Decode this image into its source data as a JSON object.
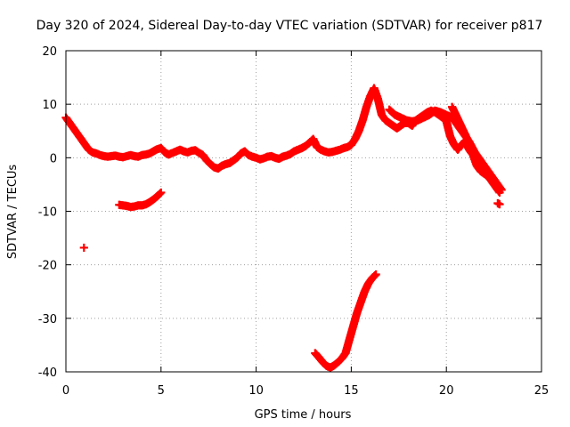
{
  "chart_data": {
    "type": "scatter",
    "title": "Day 320 of 2024, Sidereal Day-to-day VTEC variation (SDTVAR) for receiver p817",
    "xlabel": "GPS time / hours",
    "ylabel": "SDTVAR / TECUs",
    "xlim": [
      0,
      25
    ],
    "ylim": [
      -40,
      20
    ],
    "xticks": [
      0,
      5,
      10,
      15,
      20,
      25
    ],
    "yticks": [
      -40,
      -30,
      -20,
      -10,
      0,
      10,
      20
    ],
    "xtick_labels": [
      "0",
      "5",
      "10",
      "15",
      "20",
      "25"
    ],
    "ytick_labels": [
      "-40",
      "-30",
      "-20",
      "-10",
      "0",
      "10",
      "20"
    ],
    "grid": true,
    "marker": "plus",
    "color": "#ff0000",
    "series": [
      {
        "name": "main",
        "x": [
          0.0,
          0.2,
          0.4,
          0.6,
          0.8,
          1.0,
          1.2,
          1.4,
          1.6,
          1.8,
          2.0,
          2.2,
          2.4,
          2.6,
          2.8,
          3.0,
          3.2,
          3.4,
          3.6,
          3.8,
          4.0,
          4.2,
          4.4,
          4.6,
          4.8,
          5.0,
          5.2,
          5.4,
          5.6,
          5.8,
          6.0,
          6.2,
          6.4,
          6.6,
          6.8,
          7.0,
          7.2,
          7.4,
          7.6,
          7.8,
          8.0,
          8.2,
          8.4,
          8.6,
          8.8,
          9.0,
          9.2,
          9.4,
          9.6,
          9.8,
          10.0,
          10.2,
          10.4,
          10.6,
          10.8,
          11.0,
          11.2,
          11.4,
          11.6,
          11.8,
          12.0,
          12.2,
          12.4,
          12.6,
          12.8,
          13.0,
          13.2,
          13.4,
          13.6,
          13.8,
          14.0,
          14.2,
          14.4,
          14.6,
          14.8,
          15.0,
          15.2,
          15.4,
          15.6,
          15.8,
          16.0,
          16.2,
          16.4,
          16.6,
          16.8,
          17.0,
          17.2,
          17.4,
          17.6,
          17.8,
          18.0,
          18.2,
          18.4,
          18.6,
          18.8,
          19.0,
          19.2,
          19.4,
          19.6,
          19.8,
          20.0,
          20.2,
          20.4,
          20.6,
          20.8,
          21.0,
          21.2,
          21.4,
          21.6,
          21.8,
          22.0,
          22.2,
          22.4,
          22.6,
          22.8
        ],
        "y": [
          7.5,
          6.5,
          5.5,
          4.5,
          3.5,
          2.5,
          1.5,
          1.0,
          0.8,
          0.5,
          0.3,
          0.2,
          0.3,
          0.4,
          0.2,
          0.1,
          0.3,
          0.5,
          0.3,
          0.2,
          0.5,
          0.6,
          0.8,
          1.2,
          1.6,
          1.8,
          1.0,
          0.6,
          0.9,
          1.2,
          1.5,
          1.2,
          1.0,
          1.3,
          1.4,
          0.9,
          0.5,
          -0.5,
          -1.2,
          -1.8,
          -2.0,
          -1.5,
          -1.2,
          -1.0,
          -0.5,
          0.0,
          0.8,
          1.2,
          0.5,
          0.2,
          0.0,
          -0.3,
          -0.1,
          0.2,
          0.3,
          0.0,
          -0.2,
          0.2,
          0.4,
          0.7,
          1.2,
          1.5,
          1.8,
          2.2,
          2.8,
          3.5,
          2.0,
          1.5,
          1.2,
          1.0,
          1.1,
          1.3,
          1.5,
          1.8,
          2.0,
          2.4,
          3.5,
          5.0,
          7.0,
          9.5,
          11.5,
          13.0,
          11.0,
          8.0,
          7.0,
          6.5,
          6.0,
          5.5,
          6.0,
          6.5,
          6.5,
          6.0,
          7.0,
          7.5,
          8.0,
          8.5,
          8.8,
          8.5,
          8.0,
          7.5,
          6.8,
          4.0,
          2.5,
          1.5,
          2.5,
          3.0,
          1.5,
          0.5,
          -1.5,
          -2.5,
          -3.0,
          -3.5,
          -4.5,
          -5.5,
          -6.5
        ]
      },
      {
        "name": "branch-1",
        "x": [
          17.0,
          17.3,
          17.6,
          17.9,
          18.2,
          18.5,
          18.8,
          19.1,
          19.4,
          19.7,
          20.0,
          20.3,
          20.6,
          20.9,
          21.2,
          21.5,
          21.8,
          22.1,
          22.4,
          22.7,
          22.9
        ],
        "y": [
          9.0,
          8.0,
          7.5,
          7.0,
          6.8,
          7.0,
          7.5,
          8.0,
          8.8,
          8.5,
          8.0,
          7.5,
          6.0,
          4.5,
          3.0,
          1.0,
          -0.5,
          -2.0,
          -3.5,
          -5.0,
          -6.0
        ]
      },
      {
        "name": "branch-2",
        "x": [
          20.3,
          20.5,
          20.7,
          20.9,
          21.1,
          21.3,
          21.5,
          21.7,
          21.9,
          22.1,
          22.3,
          22.5,
          22.7
        ],
        "y": [
          9.5,
          8.0,
          6.5,
          5.0,
          3.5,
          2.0,
          0.5,
          -0.5,
          -1.5,
          -2.5,
          -3.5,
          -4.5,
          -5.5
        ]
      },
      {
        "name": "mid-low",
        "x": [
          2.8,
          3.0,
          3.2,
          3.4,
          3.6,
          3.8,
          4.0,
          4.2,
          4.4,
          4.6,
          4.8,
          5.0
        ],
        "y": [
          -8.8,
          -8.9,
          -9.0,
          -9.2,
          -9.1,
          -8.9,
          -8.9,
          -8.7,
          -8.3,
          -7.8,
          -7.2,
          -6.5
        ]
      },
      {
        "name": "outlier",
        "x": [
          0.95
        ],
        "y": [
          -16.8
        ]
      },
      {
        "name": "deep-arc",
        "x": [
          13.1,
          13.3,
          13.5,
          13.7,
          13.9,
          14.1,
          14.3,
          14.5,
          14.7,
          14.9,
          15.1,
          15.3,
          15.5,
          15.7,
          15.9,
          16.1,
          16.3
        ],
        "y": [
          -36.5,
          -37.3,
          -38.2,
          -38.9,
          -39.2,
          -38.8,
          -38.2,
          -37.5,
          -36.5,
          -34.0,
          -31.5,
          -29.0,
          -27.0,
          -25.0,
          -23.5,
          -22.5,
          -21.8
        ]
      },
      {
        "name": "end-cluster",
        "x": [
          22.7,
          22.8
        ],
        "y": [
          -8.5,
          -8.7
        ]
      }
    ]
  }
}
